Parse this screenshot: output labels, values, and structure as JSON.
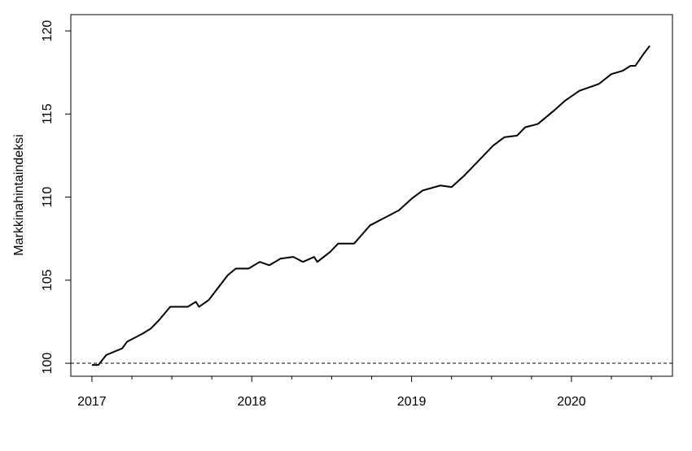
{
  "chart_data": {
    "type": "line",
    "y_label": "Markkinahintaindeksi",
    "color": "#000000",
    "x": [
      2017.0,
      2017.04,
      2017.09,
      2017.19,
      2017.22,
      2017.32,
      2017.37,
      2017.42,
      2017.49,
      2017.6,
      2017.65,
      2017.67,
      2017.73,
      2017.85,
      2017.9,
      2017.98,
      2018.05,
      2018.11,
      2018.18,
      2018.26,
      2018.32,
      2018.39,
      2018.41,
      2018.49,
      2018.54,
      2018.64,
      2018.74,
      2018.82,
      2018.92,
      2019.0,
      2019.07,
      2019.18,
      2019.25,
      2019.33,
      2019.43,
      2019.51,
      2019.58,
      2019.66,
      2019.71,
      2019.79,
      2019.89,
      2019.96,
      2020.05,
      2020.17,
      2020.25,
      2020.32,
      2020.37,
      2020.4,
      2020.45,
      2020.49
    ],
    "values": [
      99.9,
      99.9,
      100.5,
      100.9,
      101.3,
      101.8,
      102.1,
      102.6,
      103.4,
      103.4,
      103.7,
      103.4,
      103.8,
      105.3,
      105.7,
      105.7,
      106.1,
      105.9,
      106.3,
      106.4,
      106.1,
      106.4,
      106.1,
      106.7,
      107.2,
      107.2,
      108.3,
      108.7,
      109.2,
      109.9,
      110.4,
      110.7,
      110.6,
      111.3,
      112.3,
      113.1,
      113.6,
      113.7,
      114.2,
      114.4,
      115.2,
      115.8,
      116.4,
      116.8,
      117.4,
      117.6,
      117.9,
      117.9,
      118.6,
      119.1
    ],
    "xlim": [
      2016.868,
      2020.632
    ],
    "xticks": [
      2017,
      2018,
      2019,
      2020
    ],
    "xminorticks": [
      2017.25,
      2017.5,
      2017.75,
      2018.25,
      2018.5,
      2018.75,
      2019.25,
      2019.5,
      2019.75,
      2020.25,
      2020.5
    ],
    "ylim": [
      99.22,
      120.98
    ],
    "yticks": [
      100,
      105,
      110,
      115,
      120
    ],
    "hline": 100
  }
}
